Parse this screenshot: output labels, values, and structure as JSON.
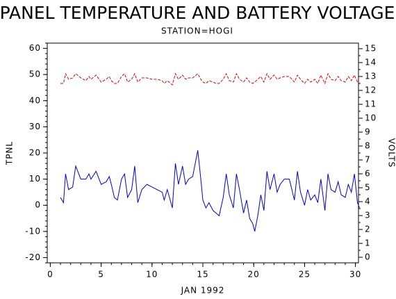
{
  "chart_data": {
    "type": "line",
    "title": "PANEL TEMPERATURE AND BATTERY VOLTAGE",
    "subtitle": "STATION=HOGI",
    "xlabel": "JAN 1992",
    "ylabel": "TPNL",
    "y2label": "VOLTS",
    "xlim": [
      -0.3,
      30.3
    ],
    "xticks": [
      0,
      5,
      10,
      15,
      20,
      25,
      30
    ],
    "xminor": 1,
    "ylim": [
      -22,
      62
    ],
    "yticks": [
      -20,
      -10,
      0,
      10,
      20,
      30,
      40,
      50,
      60
    ],
    "yminor": 2,
    "y2lim": [
      -0.4,
      15.4
    ],
    "y2ticks": [
      0,
      1,
      2,
      3,
      4,
      5,
      6,
      7,
      8,
      9,
      10,
      11,
      12,
      13,
      14,
      15
    ],
    "y2minor": 0.5,
    "x": [
      1,
      1.3,
      1.5,
      1.8,
      2.2,
      2.5,
      3,
      3.5,
      3.8,
      4,
      4.5,
      5,
      5.5,
      5.8,
      6,
      6.3,
      6.6,
      7,
      7.3,
      7.6,
      8,
      8.3,
      8.6,
      9,
      9.5,
      10,
      10.5,
      11,
      11.2,
      11.5,
      12,
      12.3,
      12.6,
      13,
      13.3,
      13.6,
      14,
      14.5,
      14.8,
      15,
      15.3,
      15.6,
      16,
      16.3,
      16.6,
      17,
      17.3,
      17.6,
      18,
      18.3,
      18.6,
      19,
      19.3,
      19.6,
      19.9,
      20.1,
      20.4,
      20.7,
      21,
      21.3,
      21.6,
      22,
      22.3,
      22.6,
      23,
      23.5,
      24,
      24.3,
      24.6,
      25,
      25.3,
      25.6,
      26,
      26.3,
      26.6,
      27,
      27.3,
      27.6,
      28,
      28.3,
      28.6,
      29,
      29.3,
      29.6,
      29.9,
      30.2,
      30.4
    ],
    "series": [
      {
        "color": "#0000cc",
        "dash": false,
        "values": [
          3,
          1,
          12,
          6,
          7,
          15,
          10,
          10,
          12,
          10,
          13,
          8,
          9,
          11,
          8,
          3,
          2,
          10,
          12,
          3,
          6,
          15,
          1,
          6,
          8,
          7,
          6,
          5,
          2,
          6,
          -1,
          16,
          8,
          15,
          8,
          10,
          11,
          21,
          10,
          2,
          -1,
          1,
          -2,
          -3,
          -4,
          3,
          12,
          4,
          -1,
          12,
          6,
          -3,
          2,
          -5,
          -7,
          -10,
          -4,
          4,
          -2,
          13,
          6,
          12,
          5,
          8,
          10,
          10,
          2,
          13,
          5,
          0,
          6,
          2,
          4,
          1,
          10,
          -2,
          12,
          6,
          5,
          9,
          4,
          3,
          8,
          5,
          12,
          1,
          -1
        ]
      },
      {
        "color": "#dd0000",
        "dash": true,
        "axis": "y2",
        "values": [
          12.5,
          12.5,
          13.2,
          12.8,
          12.9,
          13.2,
          12.9,
          12.7,
          13.0,
          12.8,
          13.1,
          12.6,
          12.8,
          13.0,
          12.7,
          12.5,
          12.5,
          13.0,
          13.2,
          12.6,
          12.8,
          13.2,
          12.6,
          12.9,
          12.9,
          12.8,
          12.8,
          12.7,
          12.5,
          12.7,
          12.4,
          13.2,
          12.8,
          13.1,
          12.8,
          12.9,
          12.9,
          13.2,
          12.8,
          12.6,
          12.5,
          12.7,
          12.6,
          12.5,
          12.5,
          12.8,
          13.2,
          12.7,
          12.6,
          13.2,
          12.8,
          12.6,
          12.9,
          12.6,
          12.5,
          12.6,
          12.8,
          13.0,
          12.6,
          13.2,
          12.8,
          13.1,
          12.8,
          12.9,
          13.0,
          13.0,
          12.6,
          13.1,
          12.8,
          12.5,
          12.8,
          12.6,
          12.8,
          12.5,
          13.1,
          12.5,
          13.2,
          12.8,
          12.7,
          13.0,
          12.7,
          12.6,
          13.0,
          12.7,
          13.1,
          12.6,
          12.5
        ]
      }
    ]
  }
}
